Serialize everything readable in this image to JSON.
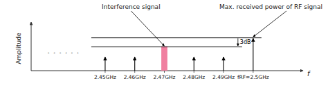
{
  "chart_data": {
    "type": "stem",
    "y_label": "Amplitude",
    "x_label": "f",
    "xlim": [
      2.425,
      2.515
    ],
    "ylim": [
      0.0,
      1.08
    ],
    "xticks": [
      {
        "value": 2.45,
        "label": "2.45GHz"
      },
      {
        "value": 2.46,
        "label": "2.46GHz"
      },
      {
        "value": 2.47,
        "label": "2.47GHz"
      },
      {
        "value": 2.48,
        "label": "2.48GHz"
      },
      {
        "value": 2.49,
        "label": "2.49GHz"
      },
      {
        "value": 2.5,
        "label": "fRF=2.5GHz"
      }
    ],
    "yticks": [],
    "tick_labels": "x",
    "grid": false,
    "series": [
      {
        "type": "stem",
        "x": [
          2.45,
          2.46,
          2.47,
          2.48,
          2.49
        ],
        "values": [
          0.35,
          0.35,
          0.35,
          0.35,
          0.35
        ],
        "colors": [
          "#000000",
          "#000000",
          "#999999",
          "#000000",
          "#000000"
        ]
      },
      {
        "type": "stem",
        "x": [
          2.5
        ],
        "values": [
          0.8
        ],
        "color": "#000000"
      },
      {
        "type": "bar",
        "x": [
          2.47
        ],
        "values": [
          0.58
        ],
        "color": "#f080a0"
      }
    ],
    "hlines": [
      {
        "value": 0.8
      },
      {
        "value": 0.58
      }
    ],
    "annotations": [
      {
        "text": "Interference signal",
        "x": 2.47,
        "y": 0.58
      },
      {
        "text": "Max. received power of RF signal",
        "x": 2.5,
        "y": 0.8
      },
      {
        "text": "3dB",
        "y": [
          0.58,
          0.8
        ]
      },
      {
        "text": "- - - - - -"
      }
    ]
  }
}
